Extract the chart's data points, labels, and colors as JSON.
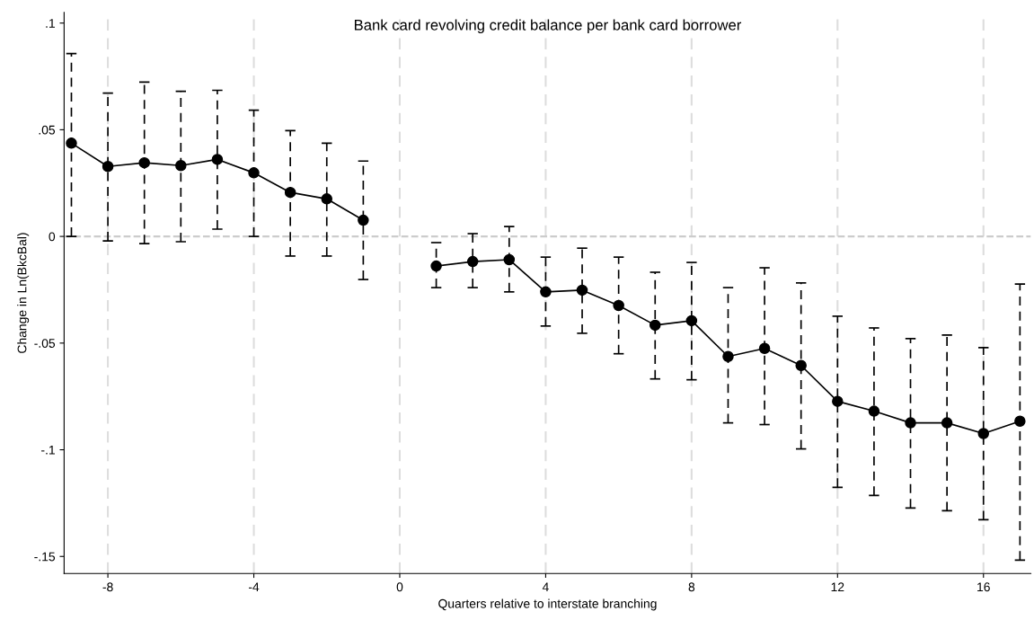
{
  "chart_data": {
    "type": "line",
    "title": "Bank card revolving credit balance per bank card borrower",
    "xlabel": "Quarters relative to interstate branching",
    "ylabel": "Change in Ln(BkcBal)",
    "x": [
      -9,
      -8,
      -7,
      -6,
      -5,
      -4,
      -3,
      -2,
      -1,
      0,
      1,
      2,
      3,
      4,
      5,
      6,
      7,
      8,
      9,
      10,
      11,
      12,
      13,
      14,
      15,
      16,
      17
    ],
    "series": [
      {
        "color": "#000000",
        "values": [
          0.0437,
          0.0328,
          0.0345,
          0.0332,
          0.0361,
          0.0298,
          0.0206,
          0.0176,
          0.0076,
          null,
          -0.0139,
          -0.0118,
          -0.0109,
          -0.026,
          -0.0252,
          -0.0324,
          -0.0416,
          -0.0395,
          -0.0563,
          -0.0525,
          -0.0605,
          -0.0773,
          -0.0819,
          -0.0874,
          -0.0874,
          -0.0924,
          -0.0866
        ],
        "errors": [
          [
            0.0,
            0.0857
          ],
          [
            -0.0021,
            0.0672
          ],
          [
            -0.0034,
            0.0723
          ],
          [
            -0.0025,
            0.068
          ],
          [
            0.0034,
            0.0685
          ],
          [
            0.0,
            0.0592
          ],
          [
            -0.0092,
            0.0496
          ],
          [
            -0.0092,
            0.0437
          ],
          [
            -0.0202,
            0.0353
          ],
          null,
          [
            -0.024,
            -0.0029
          ],
          [
            -0.024,
            0.0013
          ],
          [
            -0.026,
            0.0046
          ],
          [
            -0.042,
            -0.0097
          ],
          [
            -0.0454,
            -0.0055
          ],
          [
            -0.055,
            -0.0097
          ],
          [
            -0.0668,
            -0.0168
          ],
          [
            -0.0672,
            -0.0122
          ],
          [
            -0.0874,
            -0.024
          ],
          [
            -0.0882,
            -0.0147
          ],
          [
            -0.0996,
            -0.0218
          ],
          [
            -0.1176,
            -0.0374
          ],
          [
            -0.1214,
            -0.0429
          ],
          [
            -0.1273,
            -0.0479
          ],
          [
            -0.1286,
            -0.0462
          ],
          [
            -0.1328,
            -0.0521
          ],
          [
            -0.1517,
            -0.0223
          ]
        ]
      }
    ],
    "xlim": [
      -9.2,
      17.3
    ],
    "ylim": [
      -0.158,
      0.105
    ],
    "xticks": [
      -8,
      -4,
      0,
      4,
      8,
      12,
      16
    ],
    "yticks": [
      {
        "value": 0.1,
        "label": ".1"
      },
      {
        "value": 0.05,
        "label": ".05"
      },
      0,
      {
        "value": -0.05,
        "label": "-.05"
      },
      {
        "value": -0.1,
        "label": "-.1"
      },
      {
        "value": -0.15,
        "label": "-.15"
      }
    ],
    "ref_lines": [
      {
        "axis": "y",
        "value": 0,
        "color": "#cccccc",
        "line_style": "dashed"
      }
    ],
    "grid": "x",
    "marker": "circle",
    "line_style": "solid",
    "legend": false
  }
}
